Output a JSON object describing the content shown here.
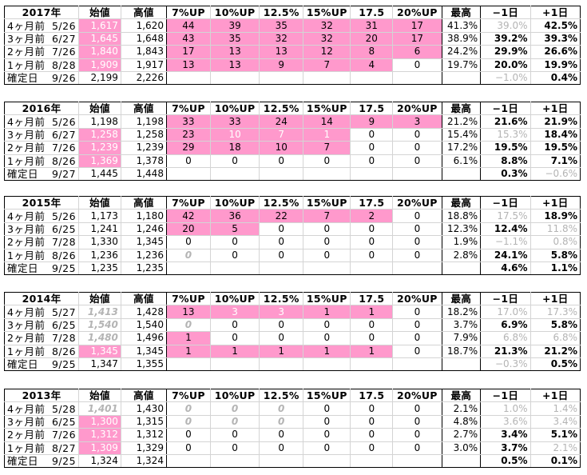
{
  "columns": [
    "始値",
    "高値",
    "7%UP",
    "10%UP",
    "12.5%",
    "15%UP",
    "17.5",
    "20%UP",
    "最高",
    "−1日",
    "+1日"
  ],
  "blocks": [
    {
      "year": "2017年",
      "rows": [
        {
          "label": "4ヶ月前",
          "date": "5/26",
          "open": "1,617",
          "open_style": "w",
          "high": "1,620",
          "up": [
            "44",
            "39",
            "35",
            "32",
            "31",
            "17"
          ],
          "pink": 6,
          "max": "41.3%",
          "m1": "39.0%",
          "m1s": "g",
          "p1": "42.5%",
          "p1s": "b"
        },
        {
          "label": "3ヶ月前",
          "date": "6/27",
          "open": "1,645",
          "open_style": "w",
          "high": "1,648",
          "up": [
            "43",
            "35",
            "32",
            "32",
            "20",
            "17"
          ],
          "pink": 6,
          "max": "38.9%",
          "m1": "39.2%",
          "m1s": "b",
          "p1": "39.3%",
          "p1s": "b"
        },
        {
          "label": "2ヶ月前",
          "date": "7/26",
          "open": "1,840",
          "open_style": "w",
          "high": "1,843",
          "up": [
            "17",
            "13",
            "13",
            "12",
            "8",
            "6"
          ],
          "pink": 6,
          "max": "24.2%",
          "m1": "29.9%",
          "m1s": "b",
          "p1": "26.6%",
          "p1s": "b"
        },
        {
          "label": "1ヶ月前",
          "date": "8/28",
          "open": "1,909",
          "open_style": "w",
          "high": "1,917",
          "up": [
            "13",
            "13",
            "9",
            "7",
            "4",
            "0"
          ],
          "pink": 5,
          "max": "19.7%",
          "m1": "20.0%",
          "m1s": "b",
          "p1": "19.9%",
          "p1s": "b"
        }
      ],
      "fixed": {
        "label": "確定日",
        "date": "9/26",
        "open": "2,199",
        "high": "2,226",
        "m1": "−1.0%",
        "m1s": "g",
        "p1": "0.4%",
        "p1s": "b"
      }
    },
    {
      "year": "2016年",
      "rows": [
        {
          "label": "4ヶ月前",
          "date": "5/26",
          "open": "1,198",
          "open_style": "",
          "high": "1,198",
          "up": [
            "33",
            "33",
            "24",
            "14",
            "9",
            "3"
          ],
          "pink": 6,
          "max": "21.2%",
          "m1": "21.6%",
          "m1s": "b",
          "p1": "21.9%",
          "p1s": "b"
        },
        {
          "label": "3ヶ月前",
          "date": "6/27",
          "open": "1,258",
          "open_style": "w",
          "high": "1,258",
          "up": [
            "23",
            "10",
            "7",
            "1",
            "0",
            "0"
          ],
          "pink": 4,
          "upw": 3,
          "max": "15.4%",
          "m1": "15.3%",
          "m1s": "g",
          "p1": "18.4%",
          "p1s": "b"
        },
        {
          "label": "2ヶ月前",
          "date": "7/26",
          "open": "1,239",
          "open_style": "w",
          "high": "1,239",
          "up": [
            "29",
            "18",
            "10",
            "7",
            "0",
            "0"
          ],
          "pink": 4,
          "max": "17.2%",
          "m1": "19.5%",
          "m1s": "b",
          "p1": "19.5%",
          "p1s": "b"
        },
        {
          "label": "1ヶ月前",
          "date": "8/26",
          "open": "1,369",
          "open_style": "w",
          "high": "1,378",
          "up": [
            "0",
            "0",
            "0",
            "0",
            "0",
            "0"
          ],
          "pink": 0,
          "max": "6.1%",
          "m1": "8.8%",
          "m1s": "b",
          "p1": "7.1%",
          "p1s": "b"
        }
      ],
      "fixed": {
        "label": "確定日",
        "date": "9/27",
        "open": "1,445",
        "high": "1,448",
        "m1": "0.3%",
        "m1s": "b",
        "p1": "−0.6%",
        "p1s": "g"
      }
    },
    {
      "year": "2015年",
      "rows": [
        {
          "label": "4ヶ月前",
          "date": "5/26",
          "open": "1,173",
          "open_style": "",
          "high": "1,180",
          "up": [
            "42",
            "36",
            "22",
            "7",
            "2",
            "0"
          ],
          "pink": 5,
          "max": "18.8%",
          "m1": "17.5%",
          "m1s": "g",
          "p1": "18.9%",
          "p1s": "b"
        },
        {
          "label": "3ヶ月前",
          "date": "6/25",
          "open": "1,241",
          "open_style": "",
          "high": "1,246",
          "up": [
            "20",
            "5",
            "0",
            "0",
            "0",
            "0"
          ],
          "pink": 2,
          "max": "12.3%",
          "m1": "12.4%",
          "m1s": "b",
          "p1": "11.8%",
          "p1s": "g"
        },
        {
          "label": "2ヶ月前",
          "date": "7/28",
          "open": "1,330",
          "open_style": "",
          "high": "1,345",
          "up": [
            "0",
            "0",
            "0",
            "0",
            "0",
            "0"
          ],
          "pink": 0,
          "max": "1.9%",
          "m1": "−1.1%",
          "m1s": "g",
          "p1": "0.8%",
          "p1s": "g"
        },
        {
          "label": "1ヶ月前",
          "date": "8/26",
          "open": "1,236",
          "open_style": "",
          "high": "1,236",
          "up": [
            "0",
            "0",
            "0",
            "0",
            "0",
            "0"
          ],
          "pink": 0,
          "upg0": true,
          "max": "2.8%",
          "m1": "24.1%",
          "m1s": "b",
          "p1": "5.8%",
          "p1s": "b"
        }
      ],
      "fixed": {
        "label": "確定日",
        "date": "9/25",
        "open": "1,235",
        "high": "1,235",
        "m1": "4.6%",
        "m1s": "b",
        "p1": "1.1%",
        "p1s": "b"
      }
    },
    {
      "year": "2014年",
      "rows": [
        {
          "label": "4ヶ月前",
          "date": "5/27",
          "open": "1,413",
          "open_style": "gi",
          "high": "1,428",
          "up": [
            "13",
            "3",
            "3",
            "1",
            "1",
            "0"
          ],
          "pink": 5,
          "upw": 2,
          "max": "18.2%",
          "m1": "17.0%",
          "m1s": "g",
          "p1": "17.3%",
          "p1s": "g"
        },
        {
          "label": "3ヶ月前",
          "date": "6/25",
          "open": "1,540",
          "open_style": "gi",
          "high": "1,540",
          "up": [
            "0",
            "0",
            "0",
            "0",
            "0",
            "0"
          ],
          "pink": 0,
          "upg0": true,
          "max": "3.7%",
          "m1": "6.9%",
          "m1s": "b",
          "p1": "5.8%",
          "p1s": "b"
        },
        {
          "label": "2ヶ月前",
          "date": "7/28",
          "open": "1,480",
          "open_style": "gi",
          "high": "1,496",
          "up": [
            "1",
            "0",
            "0",
            "0",
            "0",
            "0"
          ],
          "pink": 1,
          "max": "7.9%",
          "m1": "6.8%",
          "m1s": "g",
          "p1": "6.8%",
          "p1s": "g"
        },
        {
          "label": "1ヶ月前",
          "date": "8/26",
          "open": "1,345",
          "open_style": "w",
          "high": "1,345",
          "up": [
            "1",
            "1",
            "1",
            "1",
            "1",
            "0"
          ],
          "pink": 5,
          "max": "18.7%",
          "m1": "21.3%",
          "m1s": "b",
          "p1": "21.2%",
          "p1s": "b"
        }
      ],
      "fixed": {
        "label": "確定日",
        "date": "9/25",
        "open": "1,347",
        "high": "1,355",
        "m1": "−0.3%",
        "m1s": "g",
        "p1": "0.5%",
        "p1s": "b"
      }
    },
    {
      "year": "2013年",
      "rows": [
        {
          "label": "4ヶ月前",
          "date": "5/28",
          "open": "1,401",
          "open_style": "gi",
          "high": "1,430",
          "up": [
            "0",
            "0",
            "0",
            "0",
            "0",
            "0"
          ],
          "pink": 0,
          "upgall": true,
          "max": "2.1%",
          "m1": "1.0%",
          "m1s": "g",
          "p1": "1.4%",
          "p1s": "g"
        },
        {
          "label": "3ヶ月前",
          "date": "6/25",
          "open": "1,300",
          "open_style": "w",
          "high": "1,315",
          "up": [
            "0",
            "0",
            "0",
            "0",
            "0",
            "0"
          ],
          "pink": 0,
          "upg3": true,
          "max": "4.8%",
          "m1": "3.6%",
          "m1s": "g",
          "p1": "3.4%",
          "p1s": "g"
        },
        {
          "label": "2ヶ月前",
          "date": "7/26",
          "open": "1,312",
          "open_style": "w",
          "high": "1,312",
          "up": [
            "0",
            "0",
            "0",
            "0",
            "0",
            "0"
          ],
          "pink": 0,
          "max": "2.7%",
          "m1": "3.4%",
          "m1s": "b",
          "p1": "5.1%",
          "p1s": "b"
        },
        {
          "label": "1ヶ月前",
          "date": "8/27",
          "open": "1,309",
          "open_style": "w",
          "high": "1,329",
          "up": [
            "0",
            "0",
            "0",
            "0",
            "0",
            "0"
          ],
          "pink": 0,
          "max": "3.0%",
          "m1": "3.7%",
          "m1s": "b",
          "p1": "2.1%",
          "p1s": "g"
        }
      ],
      "fixed": {
        "label": "確定日",
        "date": "9/25",
        "open": "1,324",
        "high": "1,324",
        "m1": "0.5%",
        "m1s": "b",
        "p1": "0.1%",
        "p1s": "b"
      }
    }
  ]
}
